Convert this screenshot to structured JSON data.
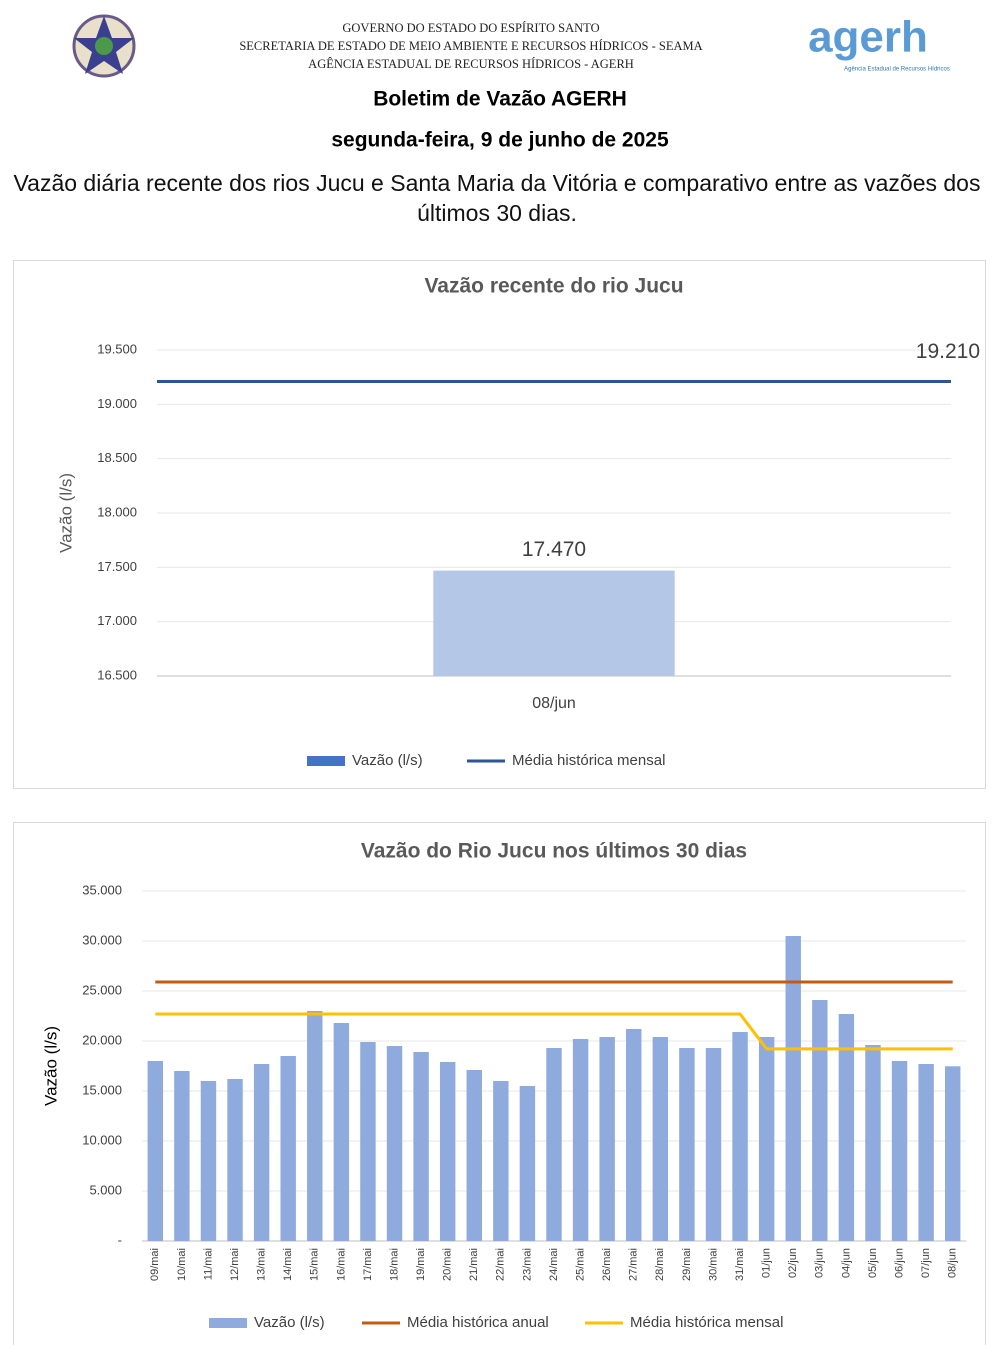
{
  "header": {
    "gov_lines": [
      "GOVERNO DO ESTADO DO ESPÍRITO SANTO",
      "SECRETARIA DE ESTADO DE MEIO AMBIENTE E RECURSOS HÍDRICOS - SEAMA",
      "AGÊNCIA ESTADUAL DE RECURSOS HÍDRICOS - AGERH"
    ],
    "logo_text": "agerh",
    "logo_subtext": "Agência Estadual de Recursos Hídricos",
    "title": "Boletim de Vazão AGERH",
    "date": "segunda-feira, 9 de junho de 2025",
    "description": "Vazão diária recente dos rios Jucu e Santa Maria da Vitória e comparativo entre as vazões dos últimos 30 dias."
  },
  "chart_data": [
    {
      "type": "bar",
      "title": "Vazão recente do rio Jucu",
      "y_label": "Vazão (l/s)",
      "categories": [
        "08/jun"
      ],
      "series": [
        {
          "name": "Vazão (l/s)",
          "type": "bar",
          "color": "#b4c7e7",
          "legend_color": "#4472c4",
          "values": [
            17470
          ],
          "value_labels": [
            "17.470"
          ]
        },
        {
          "name": "Média histórica mensal",
          "type": "line",
          "color": "#2f5597",
          "values": [
            19210
          ],
          "value_labels": [
            "19.210"
          ]
        }
      ],
      "ylim": [
        16500,
        19500
      ],
      "yticks": [
        {
          "value": 16500,
          "label": "16.500"
        },
        {
          "value": 17000,
          "label": "17.000"
        },
        {
          "value": 17500,
          "label": "17.500"
        },
        {
          "value": 18000,
          "label": "18.000"
        },
        {
          "value": 18500,
          "label": "18.500"
        },
        {
          "value": 19000,
          "label": "19.000"
        },
        {
          "value": 19500,
          "label": "19.500"
        }
      ],
      "grid": true
    },
    {
      "type": "bar",
      "title": "Vazão do Rio Jucu nos últimos 30 dias",
      "y_label": "Vazão (l/s)",
      "categories": [
        "09/mai",
        "10/mai",
        "11/mai",
        "12/mai",
        "13/mai",
        "14/mai",
        "15/mai",
        "16/mai",
        "17/mai",
        "18/mai",
        "19/mai",
        "20/mai",
        "21/mai",
        "22/mai",
        "23/mai",
        "24/mai",
        "25/mai",
        "26/mai",
        "27/mai",
        "28/mai",
        "29/mai",
        "30/mai",
        "31/mai",
        "01/jun",
        "02/jun",
        "03/jun",
        "04/jun",
        "05/jun",
        "06/jun",
        "07/jun",
        "08/jun"
      ],
      "series": [
        {
          "name": "Vazão (l/s)",
          "type": "bar",
          "color": "#8faadc",
          "values": [
            18000,
            17000,
            16000,
            16200,
            17700,
            18500,
            23000,
            21800,
            19900,
            19500,
            18900,
            17900,
            17100,
            16000,
            15500,
            19300,
            20200,
            20400,
            21200,
            20400,
            19300,
            19300,
            20900,
            20400,
            30500,
            24100,
            22700,
            19600,
            18000,
            17700,
            17470
          ]
        },
        {
          "name": "Média histórica anual",
          "type": "line",
          "color": "#c55a11",
          "values": [
            25900,
            25900,
            25900,
            25900,
            25900,
            25900,
            25900,
            25900,
            25900,
            25900,
            25900,
            25900,
            25900,
            25900,
            25900,
            25900,
            25900,
            25900,
            25900,
            25900,
            25900,
            25900,
            25900,
            25900,
            25900,
            25900,
            25900,
            25900,
            25900,
            25900,
            25900
          ]
        },
        {
          "name": "Média histórica mensal",
          "type": "line",
          "color": "#ffc000",
          "values": [
            22700,
            22700,
            22700,
            22700,
            22700,
            22700,
            22700,
            22700,
            22700,
            22700,
            22700,
            22700,
            22700,
            22700,
            22700,
            22700,
            22700,
            22700,
            22700,
            22700,
            22700,
            22700,
            22700,
            19210,
            19210,
            19210,
            19210,
            19210,
            19210,
            19210,
            19210
          ]
        }
      ],
      "ylim": [
        0,
        35000
      ],
      "yticks": [
        {
          "value": 0,
          "label": "-"
        },
        {
          "value": 5000,
          "label": "5.000"
        },
        {
          "value": 10000,
          "label": "10.000"
        },
        {
          "value": 15000,
          "label": "15.000"
        },
        {
          "value": 20000,
          "label": "20.000"
        },
        {
          "value": 25000,
          "label": "25.000"
        },
        {
          "value": 30000,
          "label": "30.000"
        },
        {
          "value": 35000,
          "label": "35.000"
        }
      ],
      "grid": true
    }
  ]
}
